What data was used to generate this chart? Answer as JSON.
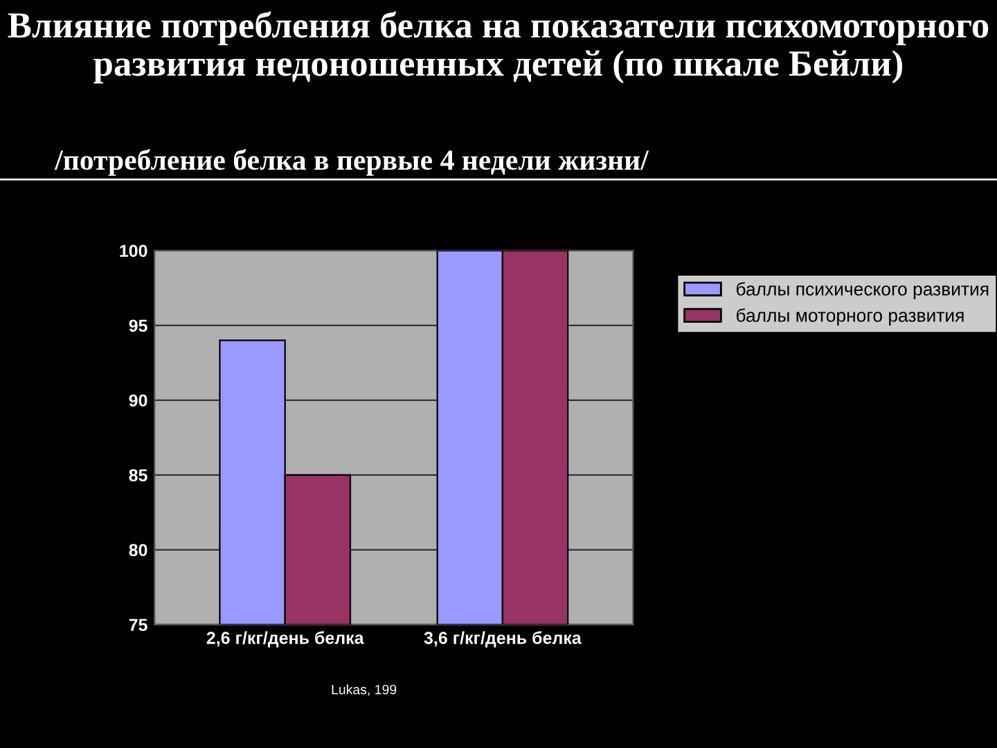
{
  "chart_data": {
    "type": "bar",
    "title": "Влияние потребления белка на показатели психомоторного развития недоношенных детей (по шкале Бейли)",
    "subtitle": "/потребление белка в первые 4 недели жизни/",
    "categories": [
      "2,6 г/кг/день белка",
      "3,6 г/кг/день белка"
    ],
    "series": [
      {
        "name": "баллы психического развития",
        "color": "#9999ff",
        "values": [
          94,
          100
        ]
      },
      {
        "name": "баллы моторного развития",
        "color": "#993366",
        "values": [
          85,
          100
        ]
      }
    ],
    "ylim": [
      75,
      100
    ],
    "yticks": [
      75,
      80,
      85,
      90,
      95,
      100
    ],
    "grid": "y",
    "legend": "top right",
    "annotations": [
      "Lukas, 199"
    ]
  }
}
